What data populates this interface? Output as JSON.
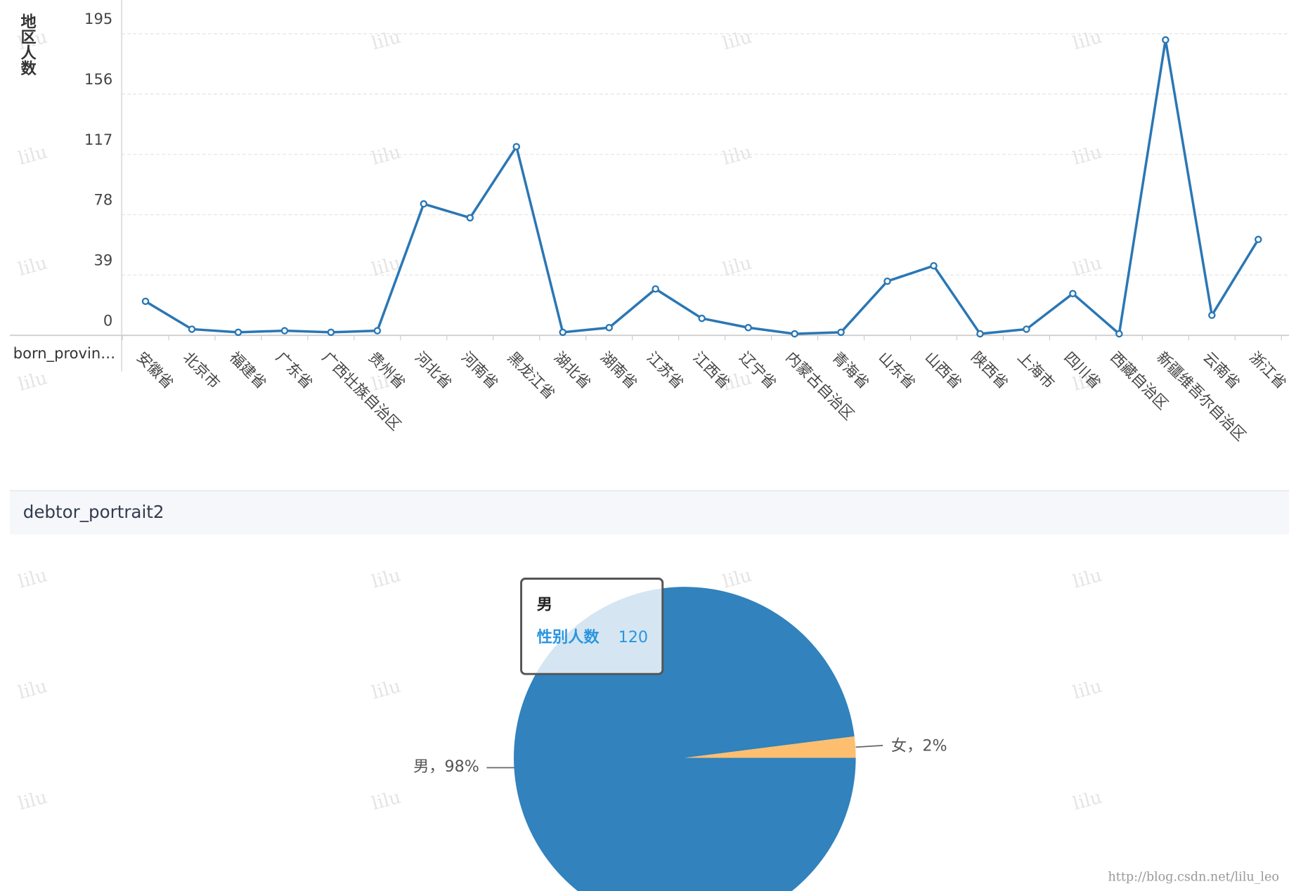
{
  "watermark": "lilu",
  "footer": "http://blog.csdn.net/lilu_leo",
  "chart_data": [
    {
      "type": "line",
      "y_label": "地区人数",
      "x_label": "born_provin…",
      "categories": [
        "安徽省",
        "北京市",
        "福建省",
        "广东省",
        "广西壮族自治区",
        "贵州省",
        "河北省",
        "河南省",
        "黑龙江省",
        "湖北省",
        "湖南省",
        "江苏省",
        "江西省",
        "辽宁省",
        "内蒙古自治区",
        "青海省",
        "山东省",
        "山西省",
        "陕西省",
        "上海市",
        "四川省",
        "西藏自治区",
        "新疆维吾尔自治区",
        "云南省",
        "浙江省"
      ],
      "values": [
        22,
        4,
        2,
        3,
        2,
        3,
        85,
        76,
        122,
        2,
        5,
        30,
        11,
        5,
        1,
        2,
        35,
        45,
        1,
        4,
        27,
        1,
        191,
        13,
        62
      ],
      "color": "#2a77b5",
      "ylim": [
        0,
        195
      ],
      "yticks": [
        0,
        39,
        78,
        117,
        156,
        195
      ],
      "grid": true
    },
    {
      "type": "pie",
      "title": "debtor_portrait2",
      "categories": [
        "男",
        "女"
      ],
      "values": [
        98,
        2
      ],
      "value_labels": [
        "男，98%",
        "女，2%"
      ],
      "colors": [
        "#3182bd",
        "#fdbf6f"
      ],
      "tooltip": {
        "category": "男",
        "name": "性别人数",
        "value": 120
      }
    }
  ]
}
